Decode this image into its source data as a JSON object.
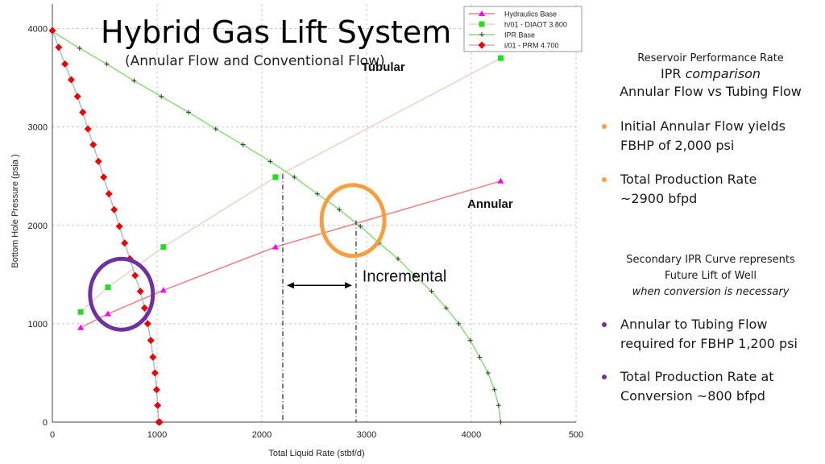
{
  "title": "Hybrid Gas Lift System",
  "subtitle": "(Annular Flow and Conventional Flow)",
  "chart_data": {
    "type": "line",
    "xlabel": "Total Liquid Rate (stbf/d)",
    "ylabel": "Bottom Hole Pressure (psia   )",
    "xlim": [
      0,
      5000
    ],
    "ylim": [
      0,
      4250
    ],
    "x_ticks": [
      "0",
      "1000",
      "2000",
      "3000",
      "4000",
      "500"
    ],
    "y_ticks": [
      "0",
      "1000",
      "2000",
      "3000",
      "4000"
    ],
    "grid": true,
    "legend_position": "top-right",
    "series": [
      {
        "name": "Hydraulics Base",
        "color": "#f08080",
        "marker": "triangle",
        "marker_color": "#ff00ff",
        "x": [
          270,
          530,
          1060,
          2130,
          4280
        ],
        "y": [
          960,
          1100,
          1340,
          1780,
          2450
        ]
      },
      {
        "name": "h/01 - DIAOT 3.800",
        "color": "#f0d0c8",
        "marker": "square",
        "marker_color": "#22dd22",
        "x": [
          270,
          530,
          1060,
          2130,
          4280
        ],
        "y": [
          1120,
          1370,
          1780,
          2490,
          3700
        ]
      },
      {
        "name": "IPR Base",
        "color": "#88dd77",
        "marker": "plus",
        "marker_color": "#333333",
        "x": [
          0,
          260,
          520,
          780,
          1040,
          1300,
          1560,
          1820,
          2080,
          2310,
          2530,
          2740,
          2940,
          3120,
          3300,
          3460,
          3620,
          3760,
          3880,
          3990,
          4080,
          4160,
          4220,
          4260,
          4280
        ],
        "y": [
          3970,
          3800,
          3640,
          3470,
          3310,
          3150,
          2980,
          2820,
          2650,
          2490,
          2320,
          2160,
          1990,
          1820,
          1660,
          1490,
          1330,
          1160,
          1000,
          830,
          660,
          500,
          330,
          170,
          0
        ]
      },
      {
        "name": "i/01 - PRM 4.700",
        "color": "#aabbcc",
        "marker": "diamond",
        "marker_color": "#ee0000",
        "x": [
          0,
          60,
          120,
          180,
          240,
          290,
          340,
          390,
          440,
          490,
          540,
          590,
          640,
          690,
          740,
          790,
          840,
          880,
          910,
          940,
          960,
          980,
          995,
          1005,
          1015,
          1025
        ],
        "y": [
          3980,
          3810,
          3640,
          3480,
          3310,
          3150,
          2980,
          2820,
          2650,
          2490,
          2320,
          2160,
          1990,
          1820,
          1660,
          1490,
          1330,
          1160,
          1000,
          830,
          660,
          500,
          330,
          170,
          0,
          0
        ]
      }
    ],
    "annotations": [
      {
        "text": "Tubular"
      },
      {
        "text": "Annular"
      },
      {
        "text": "Incremental"
      }
    ],
    "vlines": [
      {
        "x": 2200,
        "y_top": 2520
      },
      {
        "x": 2900,
        "y_top": 2050
      }
    ],
    "arrow": {
      "x_from": 2200,
      "x_to": 2900,
      "y": 1390
    },
    "circles": [
      {
        "cx": 660,
        "cy": 1300,
        "r_x": 300,
        "r_y": 360,
        "color": "#7030a0"
      },
      {
        "cx": 2870,
        "cy": 2050,
        "r_x": 300,
        "r_y": 360,
        "color": "#f4a040"
      }
    ]
  },
  "right_panel": {
    "line1": "Reservoir  Performance Rate",
    "line2a": "IPR ",
    "line2b": "comparison",
    "line3": "Annular Flow vs Tubing Flow",
    "b1_a": "Initial Annular Flow yields",
    "b1_b": "FBHP of 2,000 psi",
    "b2_a": "Total Production Rate",
    "b2_b": "~2900 bfpd",
    "sec_a": "Secondary IPR Curve represents",
    "sec_b": "Future Lift of Well",
    "sec_c": "when conversion is necessary",
    "b3_a": "Annular to Tubing Flow",
    "b3_b": "required for FBHP 1,200 psi",
    "b4_a": "Total Production Rate at",
    "b4_b": "Conversion ~800 bfpd",
    "orange": "#f4a040",
    "purple": "#7030a0"
  }
}
